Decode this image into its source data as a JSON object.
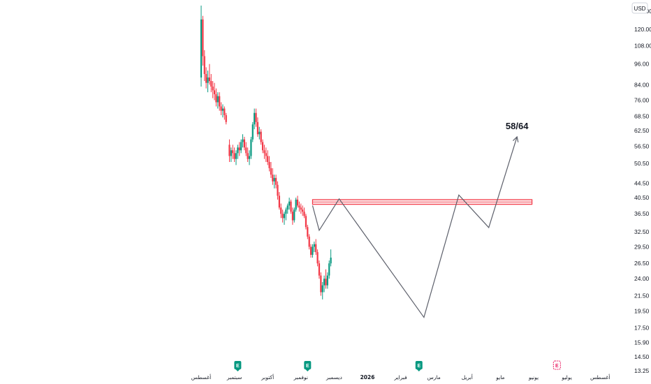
{
  "chart_data": {
    "type": "candlestick",
    "currency": "USD",
    "y_scale": "log",
    "ylim": [
      13.25,
      140
    ],
    "y_ticks": [
      "135.00",
      "120.00",
      "108.00",
      "96.00",
      "84.00",
      "76.00",
      "68.50",
      "62.50",
      "56.50",
      "50.50",
      "44.50",
      "40.50",
      "36.50",
      "32.50",
      "29.50",
      "26.50",
      "24.00",
      "21.50",
      "19.50",
      "17.50",
      "15.90",
      "14.50",
      "13.25"
    ],
    "x_ticks": [
      "أغسطس",
      "سبتمبر",
      "أكتوبر",
      "نوفمبر",
      "ديسمبر",
      "2026",
      "فبراير",
      "مارس",
      "أبريل",
      "مايو",
      "يونيو",
      "يوليو",
      "أغسطس"
    ],
    "x_tick_bold": [
      false,
      false,
      false,
      false,
      false,
      true,
      false,
      false,
      false,
      false,
      false,
      false,
      false
    ],
    "grid": false,
    "colors": {
      "up": "#089981",
      "down": "#f23645",
      "line": "#5d606b",
      "zone": "#f23645",
      "earnings_past": "#089981",
      "earnings_future": "#e91e63"
    },
    "earnings_markers": [
      {
        "label": "E",
        "month_pos": 1.1,
        "future": false
      },
      {
        "label": "E",
        "month_pos": 3.2,
        "future": false
      },
      {
        "label": "E",
        "month_pos": 6.55,
        "future": false
      },
      {
        "label": "E",
        "month_pos": 10.7,
        "future": true
      }
    ],
    "resistance_zone": {
      "low": 38.8,
      "high": 40.0,
      "start_month_pos": 3.35,
      "end_month_pos": 9.95
    },
    "projection_path": [
      {
        "month_pos": 3.35,
        "price": 38.5
      },
      {
        "month_pos": 3.55,
        "price": 32.8
      },
      {
        "month_pos": 4.15,
        "price": 40.2
      },
      {
        "month_pos": 6.7,
        "price": 18.7
      },
      {
        "month_pos": 7.75,
        "price": 41.2
      },
      {
        "month_pos": 8.65,
        "price": 33.4
      },
      {
        "month_pos": 9.5,
        "price": 60.0
      }
    ],
    "target_label": "58/64",
    "candles": [
      [
        0,
        88,
        140,
        83,
        128
      ],
      [
        0.05,
        128,
        131,
        95,
        101
      ],
      [
        0.1,
        101,
        105,
        86,
        90
      ],
      [
        0.15,
        90,
        94,
        82,
        85
      ],
      [
        0.2,
        85,
        92,
        80,
        88
      ],
      [
        0.25,
        88,
        96,
        84,
        86
      ],
      [
        0.3,
        86,
        90,
        80,
        83
      ],
      [
        0.35,
        83,
        86,
        77,
        81
      ],
      [
        0.4,
        81,
        85,
        76,
        79
      ],
      [
        0.45,
        79,
        82,
        73,
        75
      ],
      [
        0.5,
        75,
        80,
        72,
        78
      ],
      [
        0.55,
        78,
        80,
        71,
        73
      ],
      [
        0.6,
        73,
        75,
        69,
        71
      ],
      [
        0.65,
        71,
        74,
        68,
        72
      ],
      [
        0.7,
        72,
        73,
        67,
        69
      ],
      [
        0.75,
        69,
        70,
        65,
        66
      ],
      [
        0.85,
        57,
        59,
        51,
        53
      ],
      [
        0.9,
        53,
        56,
        51,
        55
      ],
      [
        0.95,
        55,
        57,
        52,
        54
      ],
      [
        1.0,
        54,
        56,
        51,
        52
      ],
      [
        1.05,
        52,
        55,
        50,
        54
      ],
      [
        1.1,
        54,
        57,
        52,
        56
      ],
      [
        1.15,
        56,
        58,
        53,
        55
      ],
      [
        1.2,
        55,
        59,
        54,
        58
      ],
      [
        1.25,
        58,
        61,
        56,
        59
      ],
      [
        1.3,
        59,
        60,
        55,
        56
      ],
      [
        1.35,
        56,
        58,
        53,
        54
      ],
      [
        1.4,
        54,
        56,
        51,
        52
      ],
      [
        1.45,
        52,
        55,
        50,
        53
      ],
      [
        1.5,
        53,
        60,
        52,
        59
      ],
      [
        1.55,
        59,
        66,
        58,
        65
      ],
      [
        1.6,
        65,
        72,
        63,
        70
      ],
      [
        1.65,
        70,
        72,
        64,
        66
      ],
      [
        1.7,
        66,
        68,
        60,
        61
      ],
      [
        1.75,
        61,
        64,
        59,
        62
      ],
      [
        1.8,
        62,
        63,
        57,
        58
      ],
      [
        1.85,
        58,
        59,
        54,
        55
      ],
      [
        1.9,
        55,
        57,
        52,
        54
      ],
      [
        1.95,
        54,
        56,
        51,
        53
      ],
      [
        2.0,
        53,
        55,
        50,
        51
      ],
      [
        2.05,
        51,
        53,
        48,
        49
      ],
      [
        2.1,
        49,
        51,
        46,
        47
      ],
      [
        2.15,
        47,
        49,
        44,
        45
      ],
      [
        2.2,
        45,
        47,
        43,
        46
      ],
      [
        2.25,
        46,
        47,
        43,
        44
      ],
      [
        2.3,
        44,
        45,
        40,
        41
      ],
      [
        2.35,
        41,
        42,
        37.5,
        38
      ],
      [
        2.4,
        38,
        39,
        35.5,
        36.5
      ],
      [
        2.45,
        36.5,
        37.5,
        34.5,
        35.5
      ],
      [
        2.5,
        35.5,
        37,
        34,
        36.5
      ],
      [
        2.55,
        36.5,
        38,
        35,
        37.5
      ],
      [
        2.6,
        37.5,
        39,
        36.5,
        38.5
      ],
      [
        2.65,
        38.5,
        40.5,
        37.5,
        39.5
      ],
      [
        2.7,
        39.5,
        40,
        36.5,
        37
      ],
      [
        2.75,
        37,
        38,
        34,
        35
      ],
      [
        2.8,
        35,
        38,
        34.5,
        37.5
      ],
      [
        2.85,
        37.5,
        40.5,
        37,
        40
      ],
      [
        2.9,
        40,
        41,
        38,
        38.5
      ],
      [
        2.95,
        38.5,
        39.5,
        37,
        38
      ],
      [
        3.0,
        38,
        39,
        36.5,
        37.5
      ],
      [
        3.05,
        37.5,
        38.5,
        36,
        37
      ],
      [
        3.1,
        37,
        38,
        35.5,
        36
      ],
      [
        3.15,
        36,
        36.5,
        33,
        33.5
      ],
      [
        3.2,
        33.5,
        34,
        31,
        31.5
      ],
      [
        3.25,
        31.5,
        32,
        29,
        29.5
      ],
      [
        3.3,
        29.5,
        30,
        27.5,
        28
      ],
      [
        3.35,
        28,
        30,
        27.5,
        29.5
      ],
      [
        3.4,
        29.5,
        30.5,
        28.5,
        30
      ],
      [
        3.45,
        30,
        31,
        28,
        28.5
      ],
      [
        3.5,
        28.5,
        29,
        26,
        26.5
      ],
      [
        3.55,
        26.5,
        27,
        24,
        24.5
      ],
      [
        3.6,
        24.5,
        25,
        21.5,
        22
      ],
      [
        3.65,
        22,
        23.5,
        21,
        23
      ],
      [
        3.7,
        23,
        24.5,
        22,
        24
      ],
      [
        3.75,
        24,
        25.5,
        22.5,
        23
      ],
      [
        3.8,
        23,
        25,
        22.5,
        24.5
      ],
      [
        3.85,
        24.5,
        27,
        24,
        26.5
      ],
      [
        3.9,
        26.5,
        29,
        26,
        27.5
      ]
    ]
  }
}
